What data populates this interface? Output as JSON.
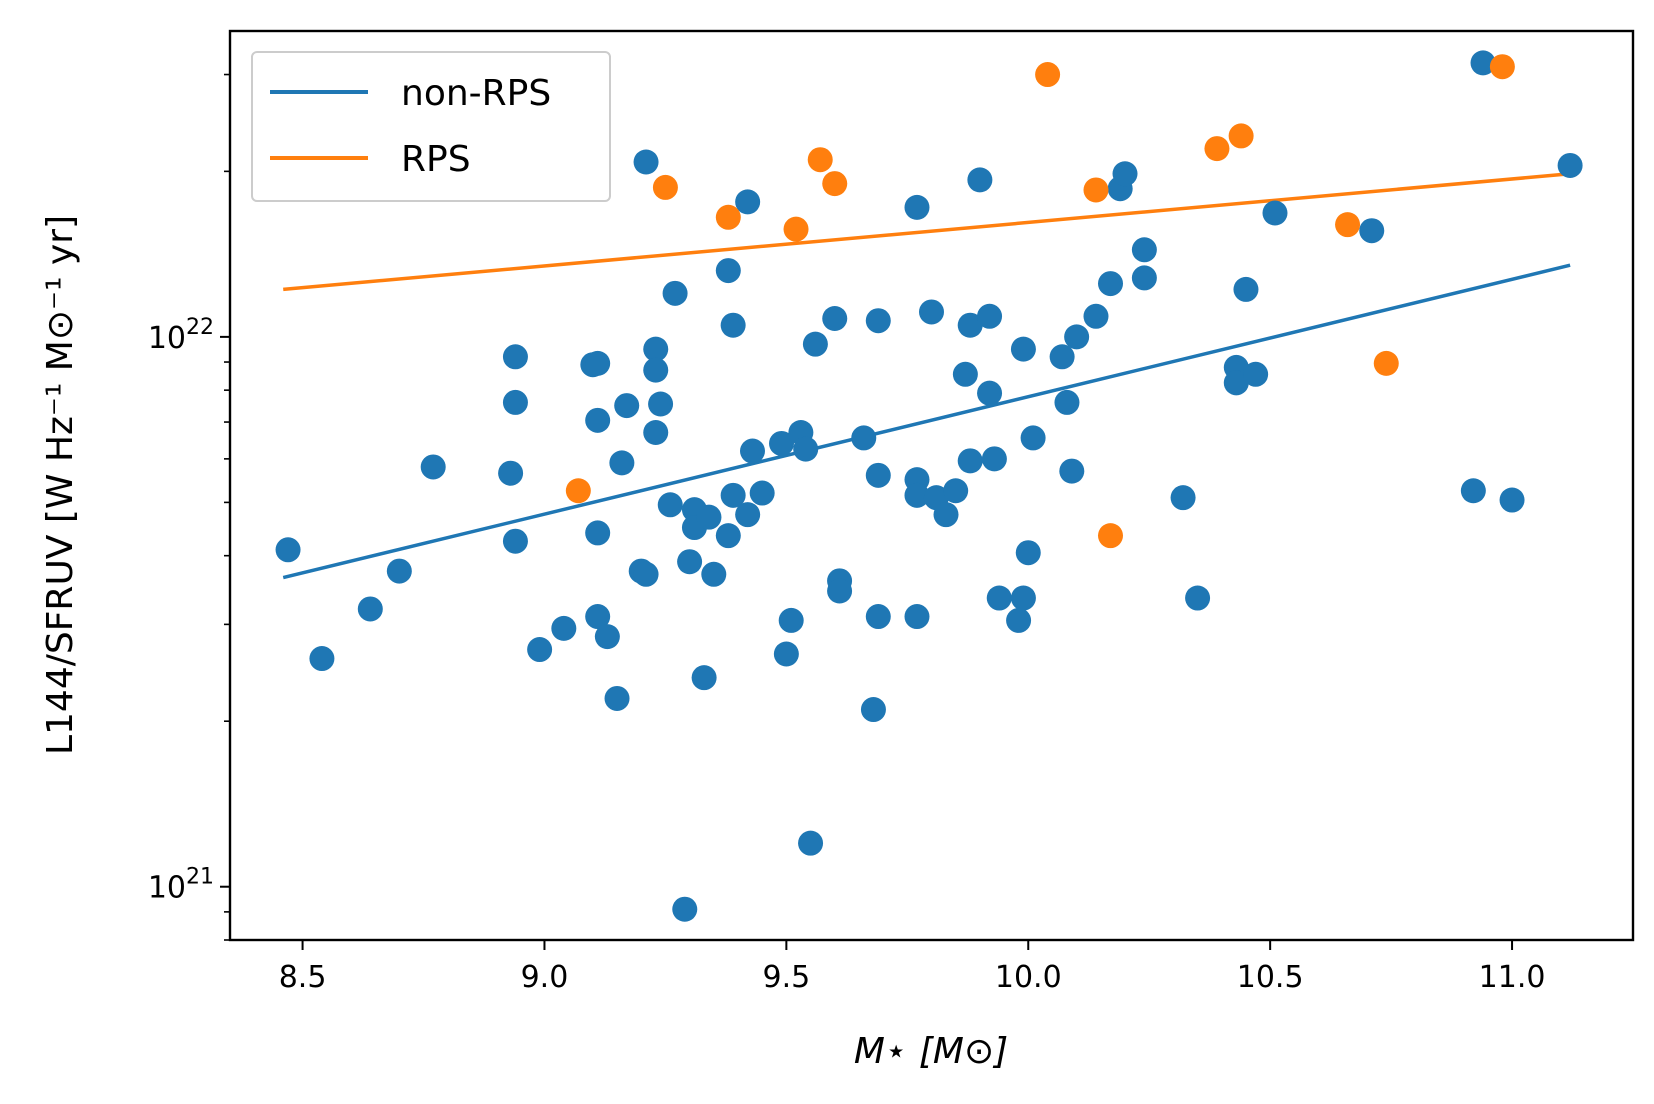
{
  "chart_data": {
    "type": "scatter",
    "title": "",
    "xlabel": "M⋆ [M⊙]",
    "ylabel": "L144/SFRUV [W Hz⁻¹ M⊙⁻¹ yr]",
    "xlim": [
      8.35,
      11.25
    ],
    "ylim": [
      8e+20,
      3.6e+22
    ],
    "y_scale": "log",
    "grid": false,
    "legend_position": "top-left",
    "x_ticks": [
      8.5,
      9.0,
      9.5,
      10.0,
      10.5,
      11.0
    ],
    "x_tick_labels": [
      "8.5",
      "9.0",
      "9.5",
      "10.0",
      "10.5",
      "11.0"
    ],
    "y_ticks": [
      1e+21,
      1e+22
    ],
    "y_tick_labels": [
      {
        "base": "10",
        "exp": "21"
      },
      {
        "base": "10",
        "exp": "22"
      }
    ],
    "y_minor_ticks": [
      8e+20,
      9e+20,
      2e+21,
      3e+21,
      4e+21,
      5e+21,
      6e+21,
      7e+21,
      8e+21,
      9e+21,
      2e+22,
      3e+22
    ],
    "series": [
      {
        "name": "non-RPS",
        "color": "#1f77b4",
        "points": [
          [
            8.47,
            4.1e+21
          ],
          [
            8.54,
            2.6e+21
          ],
          [
            8.64,
            3.2e+21
          ],
          [
            8.7,
            3.75e+21
          ],
          [
            8.77,
            5.8e+21
          ],
          [
            8.93,
            5.65e+21
          ],
          [
            8.94,
            9.2e+21
          ],
          [
            8.94,
            7.6e+21
          ],
          [
            8.94,
            4.25e+21
          ],
          [
            8.99,
            2.7e+21
          ],
          [
            9.04,
            2.95e+21
          ],
          [
            9.1,
            8.9e+21
          ],
          [
            9.11,
            8.95e+21
          ],
          [
            9.11,
            7.05e+21
          ],
          [
            9.11,
            4.4e+21
          ],
          [
            9.11,
            3.1e+21
          ],
          [
            9.13,
            2.85e+21
          ],
          [
            9.15,
            2.2e+21
          ],
          [
            9.16,
            5.9e+21
          ],
          [
            9.17,
            7.5e+21
          ],
          [
            9.2,
            3.75e+21
          ],
          [
            9.21,
            3.7e+21
          ],
          [
            9.21,
            2.08e+22
          ],
          [
            9.23,
            9.5e+21
          ],
          [
            9.23,
            8.7e+21
          ],
          [
            9.23,
            6.7e+21
          ],
          [
            9.24,
            7.55e+21
          ],
          [
            9.26,
            4.95e+21
          ],
          [
            9.27,
            1.2e+22
          ],
          [
            9.29,
            9.1e+20
          ],
          [
            9.3,
            3.9e+21
          ],
          [
            9.31,
            4.85e+21
          ],
          [
            9.31,
            4.5e+21
          ],
          [
            9.33,
            2.4e+21
          ],
          [
            9.34,
            4.7e+21
          ],
          [
            9.35,
            3.7e+21
          ],
          [
            9.38,
            4.35e+21
          ],
          [
            9.38,
            1.32e+22
          ],
          [
            9.39,
            1.05e+22
          ],
          [
            9.39,
            5.15e+21
          ],
          [
            9.42,
            4.75e+21
          ],
          [
            9.42,
            1.76e+22
          ],
          [
            9.43,
            6.2e+21
          ],
          [
            9.45,
            5.2e+21
          ],
          [
            9.49,
            6.4e+21
          ],
          [
            9.5,
            2.65e+21
          ],
          [
            9.51,
            3.05e+21
          ],
          [
            9.53,
            6.7e+21
          ],
          [
            9.54,
            6.25e+21
          ],
          [
            9.55,
            1.2e+21
          ],
          [
            9.56,
            9.7e+21
          ],
          [
            9.6,
            1.08e+22
          ],
          [
            9.61,
            3.6e+21
          ],
          [
            9.61,
            3.45e+21
          ],
          [
            9.66,
            6.55e+21
          ],
          [
            9.68,
            2.1e+21
          ],
          [
            9.69,
            3.1e+21
          ],
          [
            9.69,
            5.6e+21
          ],
          [
            9.69,
            1.07e+22
          ],
          [
            9.77,
            1.72e+22
          ],
          [
            9.77,
            5.5e+21
          ],
          [
            9.77,
            5.15e+21
          ],
          [
            9.77,
            3.1e+21
          ],
          [
            9.8,
            1.11e+22
          ],
          [
            9.81,
            5.1e+21
          ],
          [
            9.83,
            4.75e+21
          ],
          [
            9.85,
            5.25e+21
          ],
          [
            9.87,
            8.55e+21
          ],
          [
            9.88,
            1.05e+22
          ],
          [
            9.88,
            5.95e+21
          ],
          [
            9.9,
            1.93e+22
          ],
          [
            9.92,
            1.09e+22
          ],
          [
            9.92,
            7.9e+21
          ],
          [
            9.93,
            6e+21
          ],
          [
            9.94,
            3.35e+21
          ],
          [
            9.98,
            3.05e+21
          ],
          [
            9.99,
            9.5e+21
          ],
          [
            9.99,
            3.35e+21
          ],
          [
            10.0,
            4.05e+21
          ],
          [
            10.01,
            6.55e+21
          ],
          [
            10.07,
            9.2e+21
          ],
          [
            10.08,
            7.6e+21
          ],
          [
            10.09,
            5.7e+21
          ],
          [
            10.1,
            1e+22
          ],
          [
            10.14,
            1.09e+22
          ],
          [
            10.17,
            1.25e+22
          ],
          [
            10.19,
            1.86e+22
          ],
          [
            10.2,
            1.98e+22
          ],
          [
            10.24,
            1.44e+22
          ],
          [
            10.24,
            1.28e+22
          ],
          [
            10.32,
            5.1e+21
          ],
          [
            10.35,
            3.35e+21
          ],
          [
            10.43,
            8.8e+21
          ],
          [
            10.43,
            8.25e+21
          ],
          [
            10.45,
            1.22e+22
          ],
          [
            10.47,
            8.55e+21
          ],
          [
            10.51,
            1.68e+22
          ],
          [
            10.71,
            1.56e+22
          ],
          [
            10.92,
            5.25e+21
          ],
          [
            10.94,
            3.15e+22
          ],
          [
            11.0,
            5.05e+21
          ],
          [
            11.12,
            2.05e+22
          ]
        ],
        "fit_line": [
          [
            8.46,
            3.65e+21
          ],
          [
            11.12,
            1.35e+22
          ]
        ]
      },
      {
        "name": "RPS",
        "color": "#ff7f0e",
        "points": [
          [
            9.07,
            5.25e+21
          ],
          [
            9.25,
            1.87e+22
          ],
          [
            9.38,
            1.65e+22
          ],
          [
            9.52,
            1.57e+22
          ],
          [
            9.57,
            2.1e+22
          ],
          [
            9.6,
            1.9e+22
          ],
          [
            10.04,
            3e+22
          ],
          [
            10.14,
            1.85e+22
          ],
          [
            10.17,
            4.35e+21
          ],
          [
            10.39,
            2.2e+22
          ],
          [
            10.44,
            2.32e+22
          ],
          [
            10.66,
            1.6e+22
          ],
          [
            10.74,
            8.95e+21
          ],
          [
            10.98,
            3.1e+22
          ]
        ],
        "fit_line": [
          [
            8.46,
            1.22e+22
          ],
          [
            11.12,
            1.98e+22
          ]
        ]
      }
    ]
  }
}
